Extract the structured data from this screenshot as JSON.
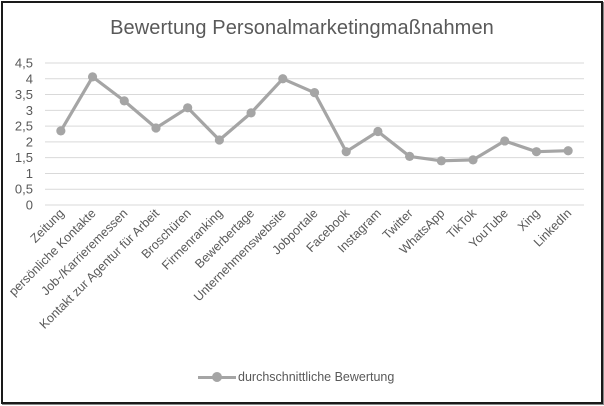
{
  "chart_data": {
    "type": "line",
    "title": "Bewertung Personalmarketingmaßnahmen",
    "xlabel": "",
    "ylabel": "",
    "ylim": [
      0,
      4.5
    ],
    "yticks": [
      "0",
      "0,5",
      "1",
      "1,5",
      "2",
      "2,5",
      "3",
      "3,5",
      "4",
      "4,5"
    ],
    "grid": true,
    "legend_position": "bottom",
    "categories": [
      "Zeitung",
      "persönliche Kontakte",
      "Job-/Karrieremessen",
      "Kontakt zur Agentur für Arbeit",
      "Broschüren",
      "Firmenranking",
      "Bewerbertage",
      "Unternehmenswebsite",
      "Jobportale",
      "Facebook",
      "Instagram",
      "Twitter",
      "WhatsApp",
      "TikTok",
      "YouTube",
      "Xing",
      "LinkedIn"
    ],
    "series": [
      {
        "name": "durchschnittliche Bewertung",
        "color": "#a5a5a5",
        "values": [
          2.35,
          4.06,
          3.3,
          2.44,
          3.08,
          2.06,
          2.92,
          4.0,
          3.56,
          1.69,
          2.33,
          1.54,
          1.4,
          1.43,
          2.03,
          1.69,
          1.72
        ]
      }
    ]
  },
  "colors": {
    "line": "#a5a5a5",
    "grid": "#d9d9d9",
    "text": "#595959",
    "border": "#1a1a1a"
  }
}
